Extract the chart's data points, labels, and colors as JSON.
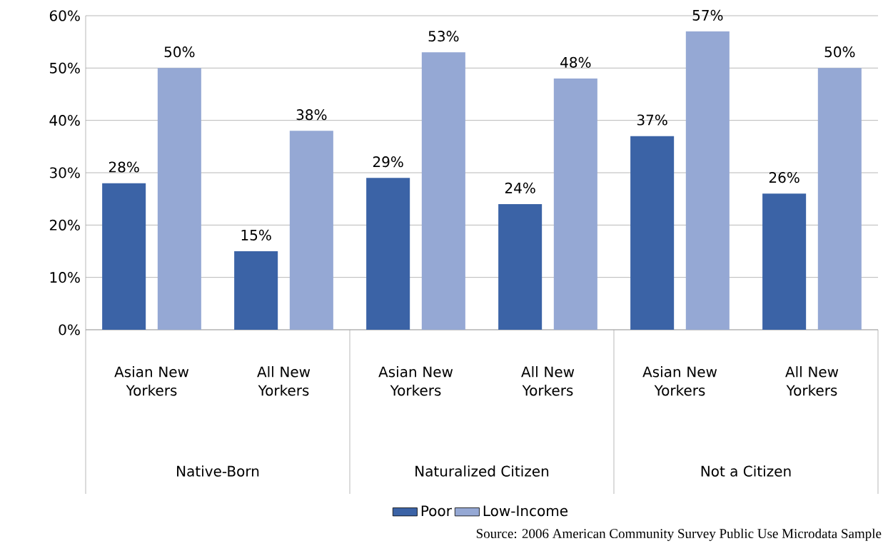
{
  "chart_data": {
    "type": "bar",
    "categories": [
      "Asian New Yorkers",
      "All New Yorkers",
      "Asian New Yorkers",
      "All New Yorkers",
      "Asian New Yorkers",
      "All New Yorkers"
    ],
    "series": [
      {
        "name": "Poor",
        "color": "#3b63a6",
        "values": [
          28,
          15,
          29,
          24,
          37,
          26
        ],
        "value_labels": [
          "28%",
          "15%",
          "29%",
          "24%",
          "37%",
          "26%"
        ]
      },
      {
        "name": "Low-Income",
        "color": "#95a8d4",
        "values": [
          50,
          38,
          53,
          48,
          57,
          50
        ],
        "value_labels": [
          "50%",
          "38%",
          "53%",
          "48%",
          "57%",
          "50%"
        ]
      }
    ],
    "ylim": [
      0,
      60
    ],
    "yticks": [
      {
        "value": 0,
        "label": "0%"
      },
      {
        "value": 10,
        "label": "10%"
      },
      {
        "value": 20,
        "label": "20%"
      },
      {
        "value": 30,
        "label": "30%"
      },
      {
        "value": 40,
        "label": "40%"
      },
      {
        "value": 50,
        "label": "50%"
      },
      {
        "value": 60,
        "label": "60%"
      }
    ],
    "grid": "y",
    "legend": "bottom",
    "annotations": [
      "Native-Born",
      "Naturalized Citizen",
      "Not a Citizen",
      "Source:  2006 American Community Survey Public Use Microdata Sample"
    ]
  }
}
